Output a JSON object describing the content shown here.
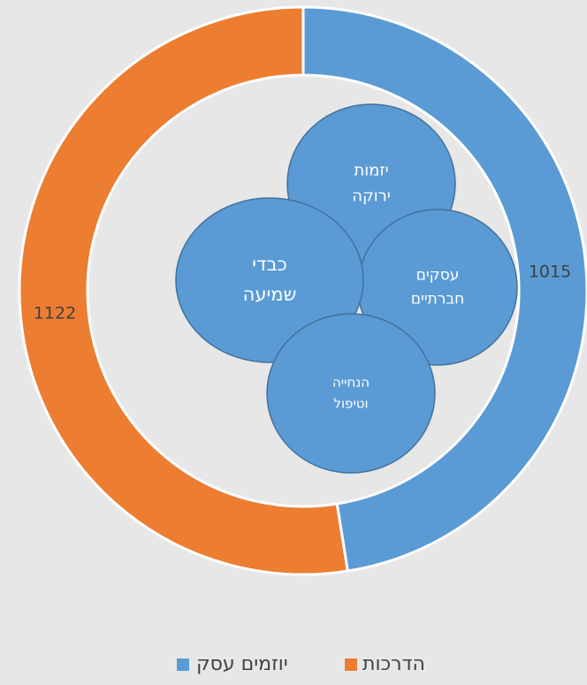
{
  "chart_data": {
    "type": "doughnut",
    "series": [
      {
        "name": "יוזמים עסק",
        "color": "#5b9bd5",
        "values": [
          1015
        ]
      },
      {
        "name": "הדרכות",
        "color": "#ed7d31",
        "values": [
          1122
        ]
      }
    ],
    "annotations": [
      {
        "lines": [
          "יזמות",
          "ירוקה"
        ]
      },
      {
        "lines": [
          "עסקים",
          "חברתיים"
        ]
      },
      {
        "lines": [
          "כבדי",
          "שמיעה"
        ]
      },
      {
        "lines": [
          "הנחייה",
          "וטיפול"
        ]
      }
    ],
    "annotation_color": "#5b9bd5",
    "legend": "bottom"
  }
}
